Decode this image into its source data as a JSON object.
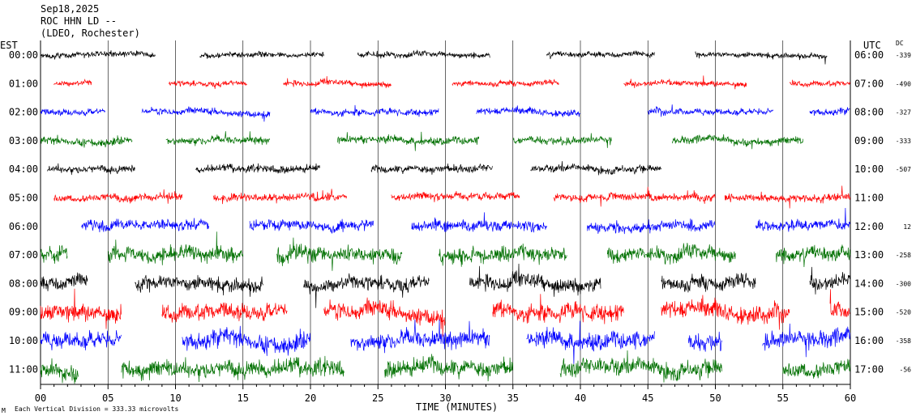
{
  "header": {
    "date": "Sep18,2025",
    "station": "ROC HHN LD --",
    "network": "(LDEO, Rochester)"
  },
  "left_zone_label": "EST",
  "right_zone_label": "UTC",
  "dc_label": "DC",
  "footer": {
    "xlabel": "TIME (MINUTES)",
    "scale_note": "Each Vertical Division = 333.33 microvolts",
    "corner_mark": "M"
  },
  "colors": {
    "black": "#000000",
    "red": "#ff0000",
    "blue": "#0000ff",
    "green": "#007000",
    "grid": "#000000"
  },
  "chart_data": {
    "type": "line",
    "title": "ROC HHN LD --",
    "xlabel": "TIME (MINUTES)",
    "xlim": [
      0,
      60
    ],
    "x_ticks": [
      "00",
      "05",
      "10",
      "15",
      "20",
      "25",
      "30",
      "35",
      "40",
      "45",
      "50",
      "55",
      "60"
    ],
    "rows": [
      {
        "est": "00:00",
        "utc": "06:00",
        "dc": "-339",
        "color": "black",
        "amp": 6,
        "segments": [
          [
            0,
            8.5
          ],
          [
            11.8,
            21
          ],
          [
            23.5,
            33.3
          ],
          [
            37.5,
            45.5
          ],
          [
            48.5,
            58.3
          ]
        ]
      },
      {
        "est": "01:00",
        "utc": "07:00",
        "dc": "-490",
        "color": "red",
        "amp": 6,
        "segments": [
          [
            1,
            3.8
          ],
          [
            9.5,
            15.3
          ],
          [
            18,
            26
          ],
          [
            30.5,
            38.4
          ],
          [
            43.2,
            52.3
          ],
          [
            55.5,
            60
          ]
        ]
      },
      {
        "est": "02:00",
        "utc": "08:00",
        "dc": "-327",
        "color": "blue",
        "amp": 7,
        "segments": [
          [
            0,
            4.8
          ],
          [
            7.5,
            17
          ],
          [
            20,
            29.5
          ],
          [
            32.3,
            40
          ],
          [
            45,
            54.3
          ],
          [
            57,
            60
          ]
        ]
      },
      {
        "est": "03:00",
        "utc": "09:00",
        "dc": "-333",
        "color": "green",
        "amp": 8,
        "segments": [
          [
            0,
            6.8
          ],
          [
            9.3,
            17
          ],
          [
            22,
            32.5
          ],
          [
            35,
            42.3
          ],
          [
            46.8,
            56.5
          ]
        ]
      },
      {
        "est": "04:00",
        "utc": "10:00",
        "dc": "-507",
        "color": "black",
        "amp": 8,
        "segments": [
          [
            0.5,
            7
          ],
          [
            11.5,
            20.7
          ],
          [
            24.5,
            33.5
          ],
          [
            36.3,
            46
          ]
        ]
      },
      {
        "est": "05:00",
        "utc": "11:00",
        "dc": "",
        "color": "red",
        "amp": 8,
        "segments": [
          [
            1,
            10.5
          ],
          [
            12.8,
            22.7
          ],
          [
            26,
            35.5
          ],
          [
            38,
            50
          ],
          [
            50.7,
            60
          ]
        ]
      },
      {
        "est": "06:00",
        "utc": "12:00",
        "dc": "12",
        "color": "blue",
        "amp": 11,
        "segments": [
          [
            3,
            12.5
          ],
          [
            15.5,
            24.7
          ],
          [
            27.5,
            37.5
          ],
          [
            40.5,
            50
          ],
          [
            53,
            60
          ]
        ]
      },
      {
        "est": "07:00",
        "utc": "13:00",
        "dc": "-258",
        "color": "green",
        "amp": 16,
        "segments": [
          [
            0,
            2
          ],
          [
            5,
            15
          ],
          [
            17.5,
            26.8
          ],
          [
            29.5,
            39
          ],
          [
            42,
            51.5
          ],
          [
            54.5,
            60
          ]
        ]
      },
      {
        "est": "08:00",
        "utc": "14:00",
        "dc": "-300",
        "color": "black",
        "amp": 16,
        "segments": [
          [
            0,
            3.5
          ],
          [
            7,
            16.5
          ],
          [
            19.5,
            28.8
          ],
          [
            31.8,
            41.5
          ],
          [
            46,
            53
          ],
          [
            57,
            60
          ]
        ]
      },
      {
        "est": "09:00",
        "utc": "15:00",
        "dc": "-520",
        "color": "red",
        "amp": 18,
        "segments": [
          [
            0,
            6
          ],
          [
            9,
            18.3
          ],
          [
            21,
            30
          ],
          [
            33.5,
            43.2
          ],
          [
            46,
            55.5
          ],
          [
            58.5,
            60
          ]
        ]
      },
      {
        "est": "10:00",
        "utc": "16:00",
        "dc": "-358",
        "color": "blue",
        "amp": 18,
        "segments": [
          [
            0,
            6
          ],
          [
            10.5,
            20
          ],
          [
            23,
            33.3
          ],
          [
            36,
            45.5
          ],
          [
            48,
            50.5
          ],
          [
            53.5,
            60
          ]
        ]
      },
      {
        "est": "11:00",
        "utc": "17:00",
        "dc": "-56",
        "color": "green",
        "amp": 18,
        "segments": [
          [
            0,
            2.8
          ],
          [
            6,
            22.5
          ],
          [
            25.5,
            35
          ],
          [
            38.5,
            50.5
          ],
          [
            55,
            60
          ]
        ]
      }
    ]
  }
}
